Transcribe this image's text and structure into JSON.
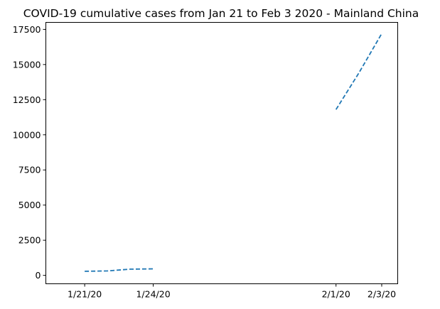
{
  "chart_data": {
    "type": "line",
    "title": "COVID-19 cumulative cases from Jan 21 to Feb 3 2020 - Mainland China",
    "xlabel": "",
    "ylabel": "",
    "x_ticks": [
      {
        "label": "1/21/20",
        "day": 0
      },
      {
        "label": "1/24/20",
        "day": 3
      },
      {
        "label": "2/1/20",
        "day": 11
      },
      {
        "label": "2/3/20",
        "day": 13
      }
    ],
    "y_ticks": [
      0,
      2500,
      5000,
      7500,
      10000,
      12500,
      15000,
      17500
    ],
    "xlim": [
      "1/20/20",
      "2/3/20"
    ],
    "ylim": [
      -600,
      18000
    ],
    "grid": false,
    "series": [
      {
        "color": "#1f77b4",
        "segments": [
          [
            {
              "x": "1/21/20",
              "day": 0,
              "y": 291
            },
            {
              "x": "1/22/20",
              "day": 1,
              "y": 314
            },
            {
              "x": "1/23/20",
              "day": 2,
              "y": 440
            },
            {
              "x": "1/24/20",
              "day": 3,
              "y": 460
            }
          ],
          [
            {
              "x": "2/1/20",
              "day": 11,
              "y": 11800
            },
            {
              "x": "2/2/20",
              "day": 12,
              "y": 14400
            },
            {
              "x": "2/3/20",
              "day": 13,
              "y": 17200
            }
          ]
        ]
      }
    ]
  }
}
